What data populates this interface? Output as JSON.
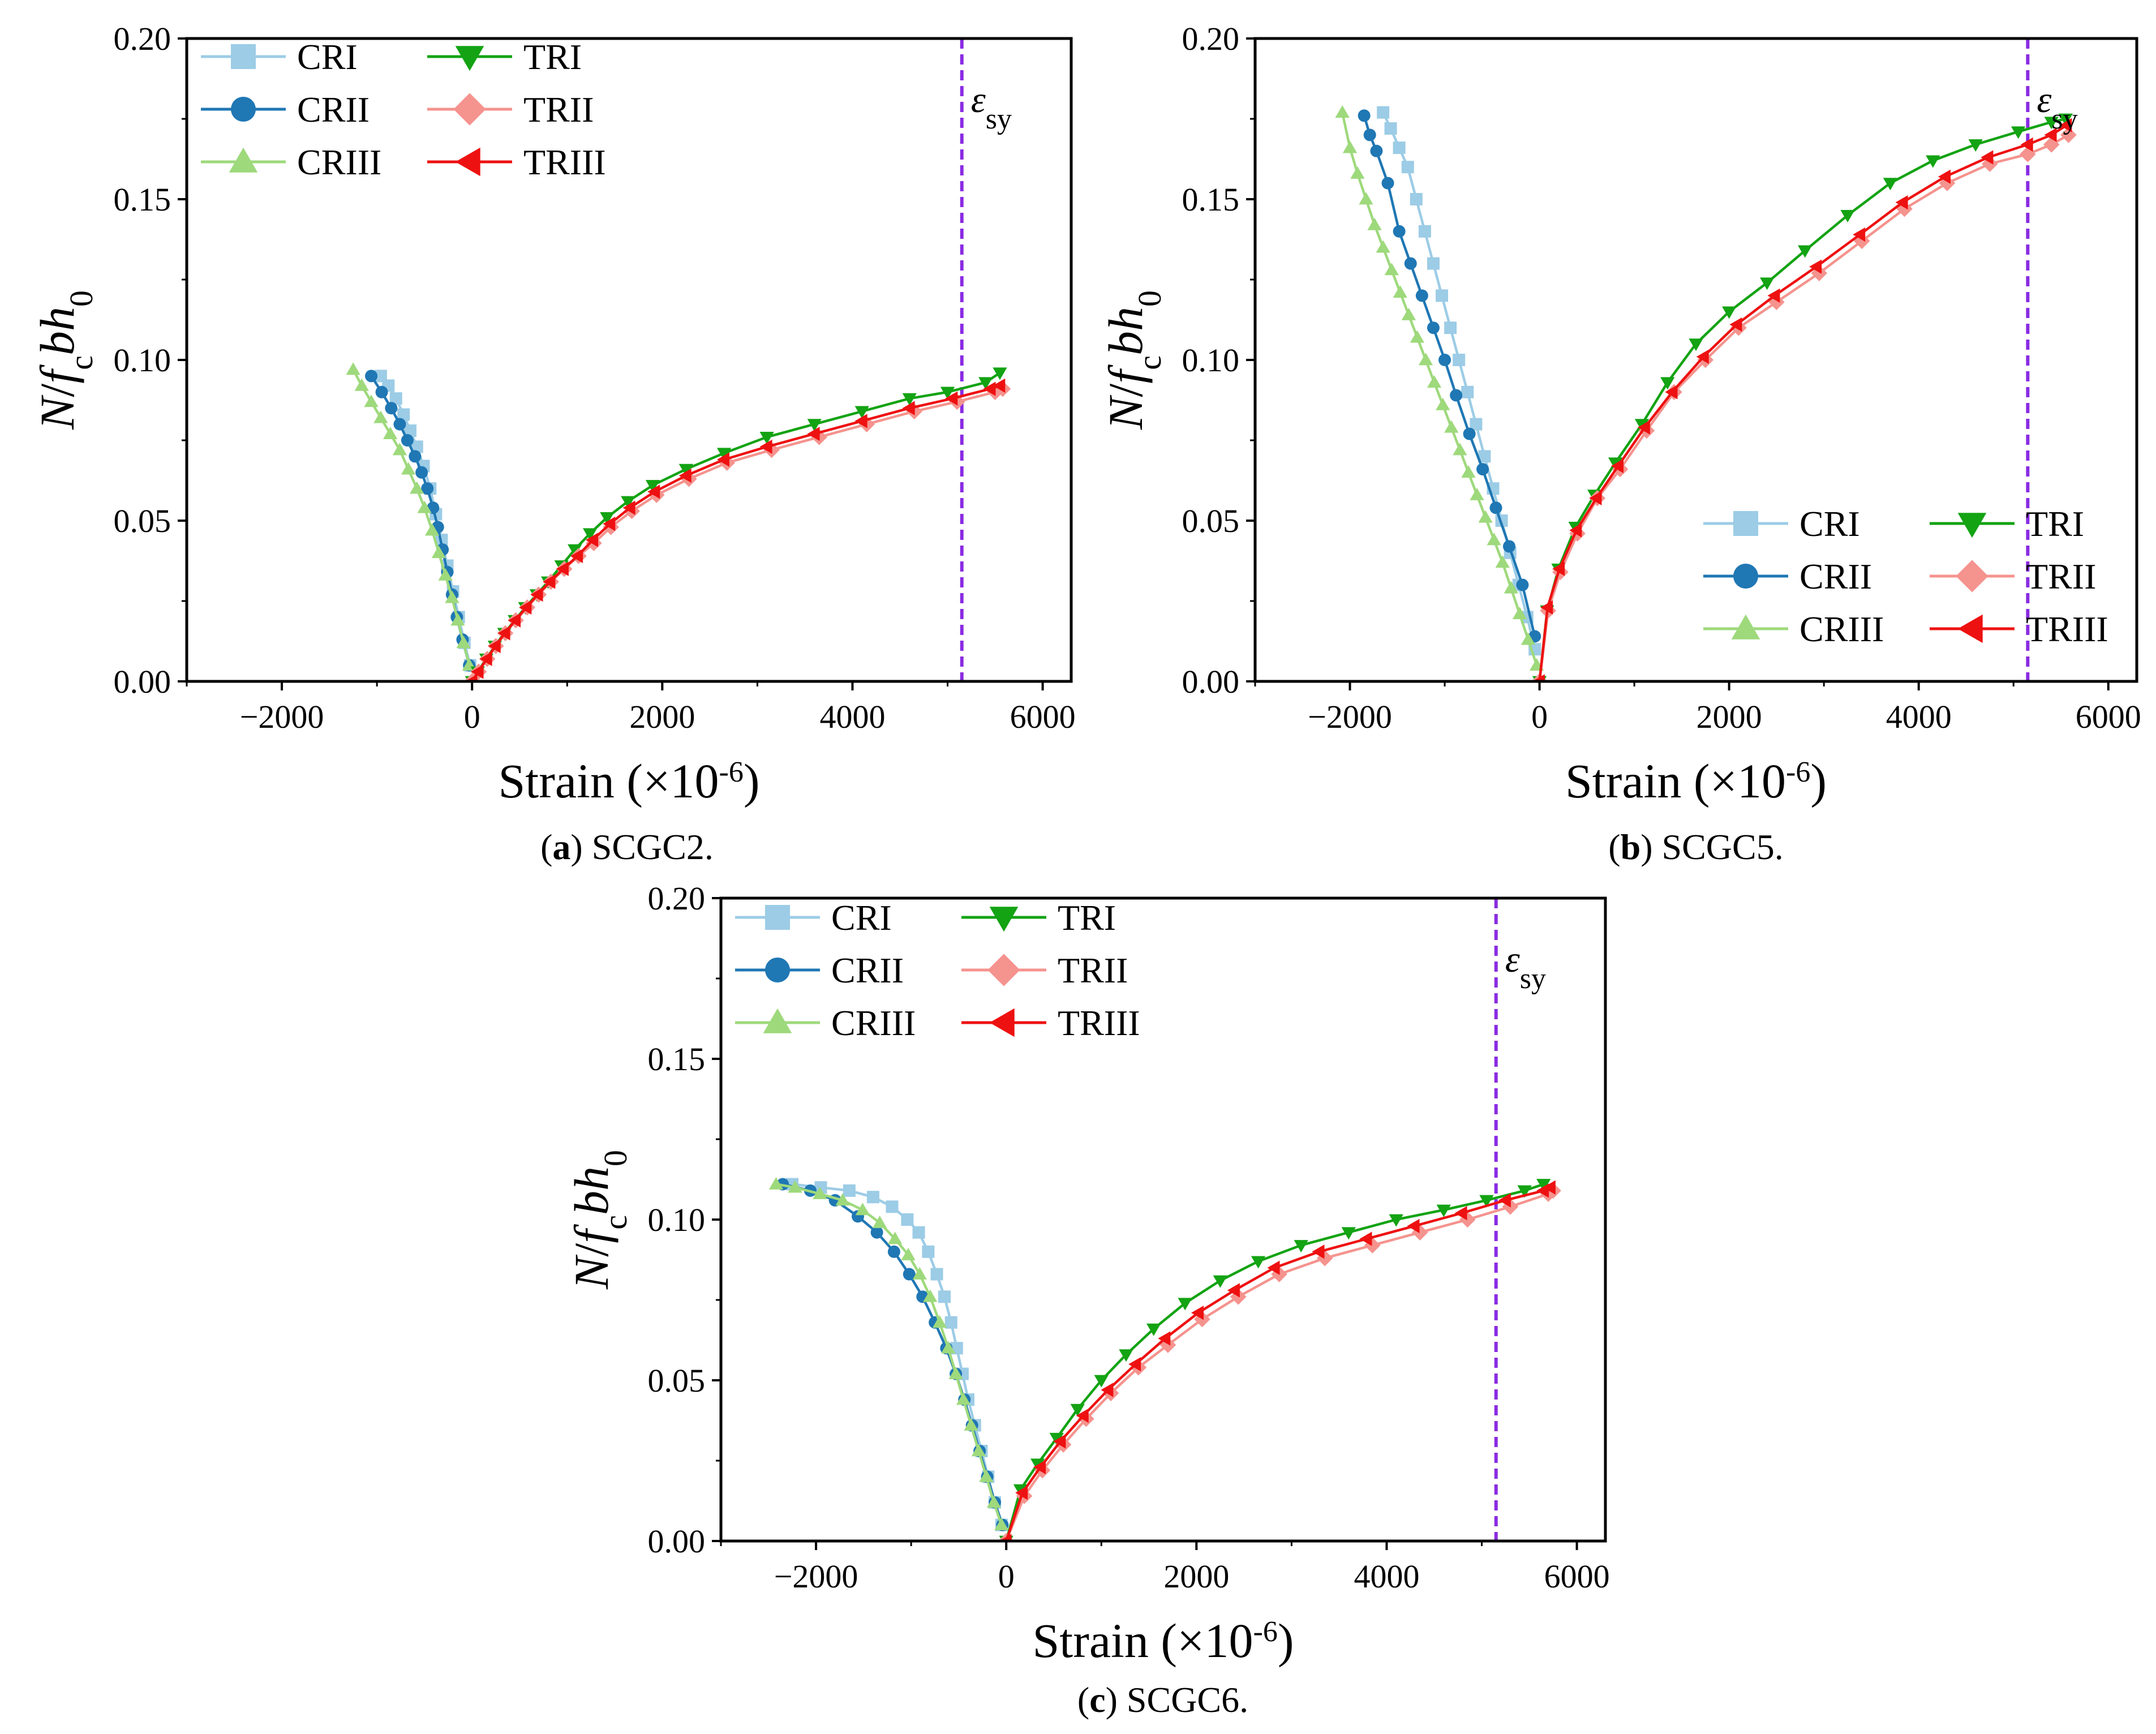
{
  "figure": {
    "strain_unit_base": "Strain (×10",
    "strain_unit_exp": "-6",
    "strain_unit_close": ")",
    "yaxis_parts": {
      "N": "N",
      "slash": "/",
      "f": "f",
      "c": "c",
      "b": "b",
      "h": "h",
      "zero": "0"
    },
    "epsilon_label": {
      "symbol": "ε",
      "subscript": "sy"
    },
    "series_styles": {
      "CRI": {
        "color": "#9ccce6",
        "marker": "square"
      },
      "CRII": {
        "color": "#1f77b4",
        "marker": "circle"
      },
      "CRIII": {
        "color": "#9ed97c",
        "marker": "triangle-up"
      },
      "TRI": {
        "color": "#13a313",
        "marker": "triangle-down"
      },
      "TRII": {
        "color": "#f5938e",
        "marker": "diamond"
      },
      "TRIII": {
        "color": "#ee1111",
        "marker": "triangle-left"
      }
    },
    "yield_line_color": "#8a2be2"
  },
  "chart_data": [
    {
      "type": "line",
      "id": "a",
      "caption_letter": "a",
      "caption_text": "SCGC2.",
      "caption_open": "(",
      "caption_close": ")",
      "xlabel": "Strain (×10-6)",
      "ylabel": "N/fcbh0",
      "xlim": [
        -3000,
        6300
      ],
      "ylim": [
        0,
        0.2
      ],
      "xticks": [
        -2000,
        0,
        2000,
        4000,
        6000
      ],
      "xtick_labels": [
        "−2000",
        "0",
        "2000",
        "4000",
        "6000"
      ],
      "yticks": [
        0,
        0.05,
        0.1,
        0.15,
        0.2
      ],
      "ytick_labels": [
        "0.00",
        "0.05",
        "0.10",
        "0.15",
        "0.20"
      ],
      "yield_strain": 5150,
      "legend_position": "top-left",
      "series": [
        {
          "name": "CRI",
          "x": [
            -20,
            -80,
            -140,
            -200,
            -260,
            -320,
            -380,
            -440,
            -510,
            -580,
            -650,
            -720,
            -800,
            -880,
            -960
          ],
          "y": [
            0.005,
            0.012,
            0.02,
            0.028,
            0.036,
            0.044,
            0.052,
            0.06,
            0.067,
            0.073,
            0.078,
            0.083,
            0.088,
            0.092,
            0.095
          ]
        },
        {
          "name": "CRII",
          "x": [
            -30,
            -100,
            -160,
            -210,
            -260,
            -310,
            -360,
            -410,
            -470,
            -530,
            -600,
            -680,
            -760,
            -850,
            -950,
            -1060
          ],
          "y": [
            0.005,
            0.013,
            0.02,
            0.027,
            0.034,
            0.041,
            0.048,
            0.054,
            0.06,
            0.065,
            0.07,
            0.075,
            0.08,
            0.085,
            0.09,
            0.095
          ]
        },
        {
          "name": "CRIII",
          "x": [
            -30,
            -90,
            -150,
            -210,
            -280,
            -350,
            -420,
            -500,
            -580,
            -670,
            -760,
            -860,
            -960,
            -1060,
            -1160,
            -1250
          ],
          "y": [
            0.005,
            0.012,
            0.019,
            0.026,
            0.033,
            0.04,
            0.047,
            0.054,
            0.06,
            0.066,
            0.072,
            0.077,
            0.082,
            0.087,
            0.092,
            0.097
          ]
        },
        {
          "name": "TRI",
          "x": [
            0,
            60,
            150,
            240,
            340,
            450,
            560,
            680,
            800,
            940,
            1080,
            1240,
            1420,
            1640,
            1900,
            2250,
            2650,
            3100,
            3600,
            4100,
            4600,
            5000,
            5400,
            5550
          ],
          "y": [
            0,
            0.003,
            0.007,
            0.011,
            0.015,
            0.019,
            0.023,
            0.027,
            0.031,
            0.036,
            0.041,
            0.046,
            0.051,
            0.056,
            0.061,
            0.066,
            0.071,
            0.076,
            0.08,
            0.084,
            0.088,
            0.09,
            0.093,
            0.096
          ]
        },
        {
          "name": "TRII",
          "x": [
            0,
            70,
            160,
            250,
            350,
            460,
            580,
            700,
            830,
            970,
            1120,
            1280,
            1460,
            1680,
            1940,
            2280,
            2680,
            3150,
            3650,
            4150,
            4650,
            5100,
            5500,
            5580
          ],
          "y": [
            0,
            0.003,
            0.007,
            0.011,
            0.015,
            0.019,
            0.023,
            0.027,
            0.031,
            0.035,
            0.039,
            0.043,
            0.048,
            0.053,
            0.058,
            0.063,
            0.068,
            0.072,
            0.076,
            0.08,
            0.084,
            0.087,
            0.09,
            0.091
          ]
        },
        {
          "name": "TRIII",
          "x": [
            0,
            65,
            155,
            245,
            345,
            455,
            570,
            690,
            820,
            960,
            1110,
            1270,
            1450,
            1660,
            1920,
            2250,
            2650,
            3100,
            3600,
            4100,
            4600,
            5050,
            5450,
            5550
          ],
          "y": [
            0,
            0.003,
            0.007,
            0.011,
            0.015,
            0.019,
            0.023,
            0.027,
            0.031,
            0.035,
            0.039,
            0.044,
            0.049,
            0.054,
            0.059,
            0.064,
            0.069,
            0.073,
            0.077,
            0.081,
            0.085,
            0.088,
            0.091,
            0.092
          ]
        }
      ]
    },
    {
      "type": "line",
      "id": "b",
      "caption_letter": "b",
      "caption_text": "SCGC5.",
      "caption_open": "(",
      "caption_close": ")",
      "xlabel": "Strain (×10-6)",
      "ylabel": "N/fcbh0",
      "xlim": [
        -3000,
        6300
      ],
      "ylim": [
        0,
        0.2
      ],
      "xticks": [
        -2000,
        0,
        2000,
        4000,
        6000
      ],
      "xtick_labels": [
        "−2000",
        "0",
        "2000",
        "4000",
        "6000"
      ],
      "yticks": [
        0,
        0.05,
        0.1,
        0.15,
        0.2
      ],
      "ytick_labels": [
        "0.00",
        "0.05",
        "0.10",
        "0.15",
        "0.20"
      ],
      "yield_strain": 5150,
      "legend_position": "bottom-right",
      "series": [
        {
          "name": "CRI",
          "x": [
            -50,
            -130,
            -220,
            -310,
            -400,
            -490,
            -580,
            -670,
            -760,
            -850,
            -940,
            -1030,
            -1120,
            -1210,
            -1300,
            -1390,
            -1480,
            -1570,
            -1650
          ],
          "y": [
            0.01,
            0.02,
            0.03,
            0.04,
            0.05,
            0.06,
            0.07,
            0.08,
            0.09,
            0.1,
            0.11,
            0.12,
            0.13,
            0.14,
            0.15,
            0.16,
            0.166,
            0.172,
            0.177
          ]
        },
        {
          "name": "CRII",
          "x": [
            -50,
            -180,
            -320,
            -460,
            -600,
            -740,
            -880,
            -1000,
            -1120,
            -1240,
            -1360,
            -1480,
            -1600,
            -1720,
            -1790,
            -1850
          ],
          "y": [
            0.014,
            0.03,
            0.042,
            0.054,
            0.066,
            0.077,
            0.089,
            0.1,
            0.11,
            0.12,
            0.13,
            0.14,
            0.155,
            0.165,
            0.17,
            0.176
          ]
        },
        {
          "name": "CRIII",
          "x": [
            -30,
            -120,
            -210,
            -300,
            -390,
            -480,
            -570,
            -660,
            -750,
            -840,
            -930,
            -1020,
            -1110,
            -1200,
            -1290,
            -1380,
            -1470,
            -1560,
            -1650,
            -1740,
            -1830,
            -1920,
            -2000,
            -2080
          ],
          "y": [
            0.005,
            0.013,
            0.021,
            0.029,
            0.037,
            0.044,
            0.051,
            0.058,
            0.065,
            0.072,
            0.079,
            0.086,
            0.093,
            0.1,
            0.107,
            0.114,
            0.121,
            0.128,
            0.135,
            0.142,
            0.15,
            0.158,
            0.166,
            0.177
          ]
        },
        {
          "name": "TRI",
          "x": [
            0,
            80,
            200,
            380,
            580,
            800,
            1080,
            1350,
            1650,
            2000,
            2400,
            2800,
            3250,
            3700,
            4150,
            4600,
            5050,
            5400,
            5550
          ],
          "y": [
            0,
            0.022,
            0.035,
            0.048,
            0.058,
            0.068,
            0.08,
            0.093,
            0.105,
            0.115,
            0.124,
            0.134,
            0.145,
            0.155,
            0.162,
            0.167,
            0.171,
            0.174,
            0.175
          ]
        },
        {
          "name": "TRII",
          "x": [
            0,
            90,
            220,
            400,
            610,
            850,
            1130,
            1420,
            1750,
            2100,
            2500,
            2950,
            3400,
            3850,
            4300,
            4750,
            5150,
            5400,
            5580
          ],
          "y": [
            0,
            0.022,
            0.034,
            0.046,
            0.057,
            0.066,
            0.078,
            0.09,
            0.1,
            0.11,
            0.118,
            0.127,
            0.137,
            0.147,
            0.155,
            0.161,
            0.164,
            0.167,
            0.17
          ]
        },
        {
          "name": "TRIII",
          "x": [
            0,
            85,
            210,
            390,
            600,
            830,
            1110,
            1400,
            1730,
            2080,
            2480,
            2920,
            3380,
            3830,
            4280,
            4730,
            5150,
            5400,
            5560
          ],
          "y": [
            0,
            0.023,
            0.035,
            0.047,
            0.057,
            0.067,
            0.079,
            0.09,
            0.101,
            0.111,
            0.12,
            0.129,
            0.139,
            0.149,
            0.157,
            0.163,
            0.167,
            0.17,
            0.173
          ]
        }
      ]
    },
    {
      "type": "line",
      "id": "c",
      "caption_letter": "c",
      "caption_text": "SCGC6.",
      "caption_open": "(",
      "caption_close": ")",
      "xlabel": "Strain (×10-6)",
      "ylabel": "N/fcbh0",
      "xlim": [
        -3000,
        6300
      ],
      "ylim": [
        0,
        0.2
      ],
      "xticks": [
        -2000,
        0,
        2000,
        4000,
        6000
      ],
      "xtick_labels": [
        "−2000",
        "0",
        "2000",
        "4000",
        "6000"
      ],
      "yticks": [
        0,
        0.05,
        0.1,
        0.15,
        0.2
      ],
      "ytick_labels": [
        "0.00",
        "0.05",
        "0.10",
        "0.15",
        "0.20"
      ],
      "yield_strain": 5150,
      "legend_position": "top-left",
      "series": [
        {
          "name": "CRI",
          "x": [
            -50,
            -120,
            -190,
            -260,
            -330,
            -400,
            -460,
            -520,
            -580,
            -650,
            -730,
            -820,
            -920,
            -1040,
            -1200,
            -1400,
            -1650,
            -1950,
            -2250
          ],
          "y": [
            0.005,
            0.012,
            0.02,
            0.028,
            0.036,
            0.044,
            0.052,
            0.06,
            0.068,
            0.076,
            0.083,
            0.09,
            0.096,
            0.1,
            0.104,
            0.107,
            0.109,
            0.11,
            0.111
          ]
        },
        {
          "name": "CRII",
          "x": [
            -40,
            -120,
            -200,
            -280,
            -360,
            -440,
            -530,
            -630,
            -750,
            -880,
            -1020,
            -1180,
            -1360,
            -1560,
            -1800,
            -2060,
            -2350
          ],
          "y": [
            0.005,
            0.012,
            0.02,
            0.028,
            0.036,
            0.044,
            0.052,
            0.06,
            0.068,
            0.076,
            0.083,
            0.09,
            0.096,
            0.101,
            0.106,
            0.109,
            0.111
          ]
        },
        {
          "name": "CRIII",
          "x": [
            -50,
            -130,
            -210,
            -290,
            -370,
            -450,
            -530,
            -610,
            -700,
            -800,
            -910,
            -1030,
            -1170,
            -1330,
            -1510,
            -1720,
            -1960,
            -2220,
            -2420
          ],
          "y": [
            0.005,
            0.012,
            0.02,
            0.028,
            0.036,
            0.044,
            0.052,
            0.06,
            0.068,
            0.076,
            0.083,
            0.089,
            0.094,
            0.099,
            0.103,
            0.106,
            0.108,
            0.11,
            0.111
          ]
        },
        {
          "name": "TRI",
          "x": [
            0,
            150,
            330,
            530,
            750,
            1000,
            1260,
            1550,
            1880,
            2250,
            2650,
            3100,
            3600,
            4100,
            4600,
            5050,
            5450,
            5650
          ],
          "y": [
            0,
            0.016,
            0.024,
            0.032,
            0.041,
            0.05,
            0.058,
            0.066,
            0.074,
            0.081,
            0.087,
            0.092,
            0.096,
            0.1,
            0.103,
            0.106,
            0.109,
            0.111
          ]
        },
        {
          "name": "TRII",
          "x": [
            0,
            190,
            380,
            600,
            840,
            1100,
            1390,
            1700,
            2060,
            2440,
            2870,
            3350,
            3850,
            4350,
            4850,
            5300,
            5700,
            5750
          ],
          "y": [
            0,
            0.014,
            0.022,
            0.03,
            0.038,
            0.046,
            0.054,
            0.061,
            0.069,
            0.076,
            0.083,
            0.088,
            0.092,
            0.096,
            0.1,
            0.104,
            0.108,
            0.109
          ]
        },
        {
          "name": "TRIII",
          "x": [
            0,
            170,
            360,
            570,
            810,
            1070,
            1360,
            1670,
            2020,
            2400,
            2820,
            3290,
            3790,
            4290,
            4790,
            5250,
            5650,
            5720
          ],
          "y": [
            0,
            0.015,
            0.023,
            0.031,
            0.039,
            0.047,
            0.055,
            0.063,
            0.071,
            0.078,
            0.085,
            0.09,
            0.094,
            0.098,
            0.102,
            0.106,
            0.109,
            0.11
          ]
        }
      ]
    }
  ]
}
